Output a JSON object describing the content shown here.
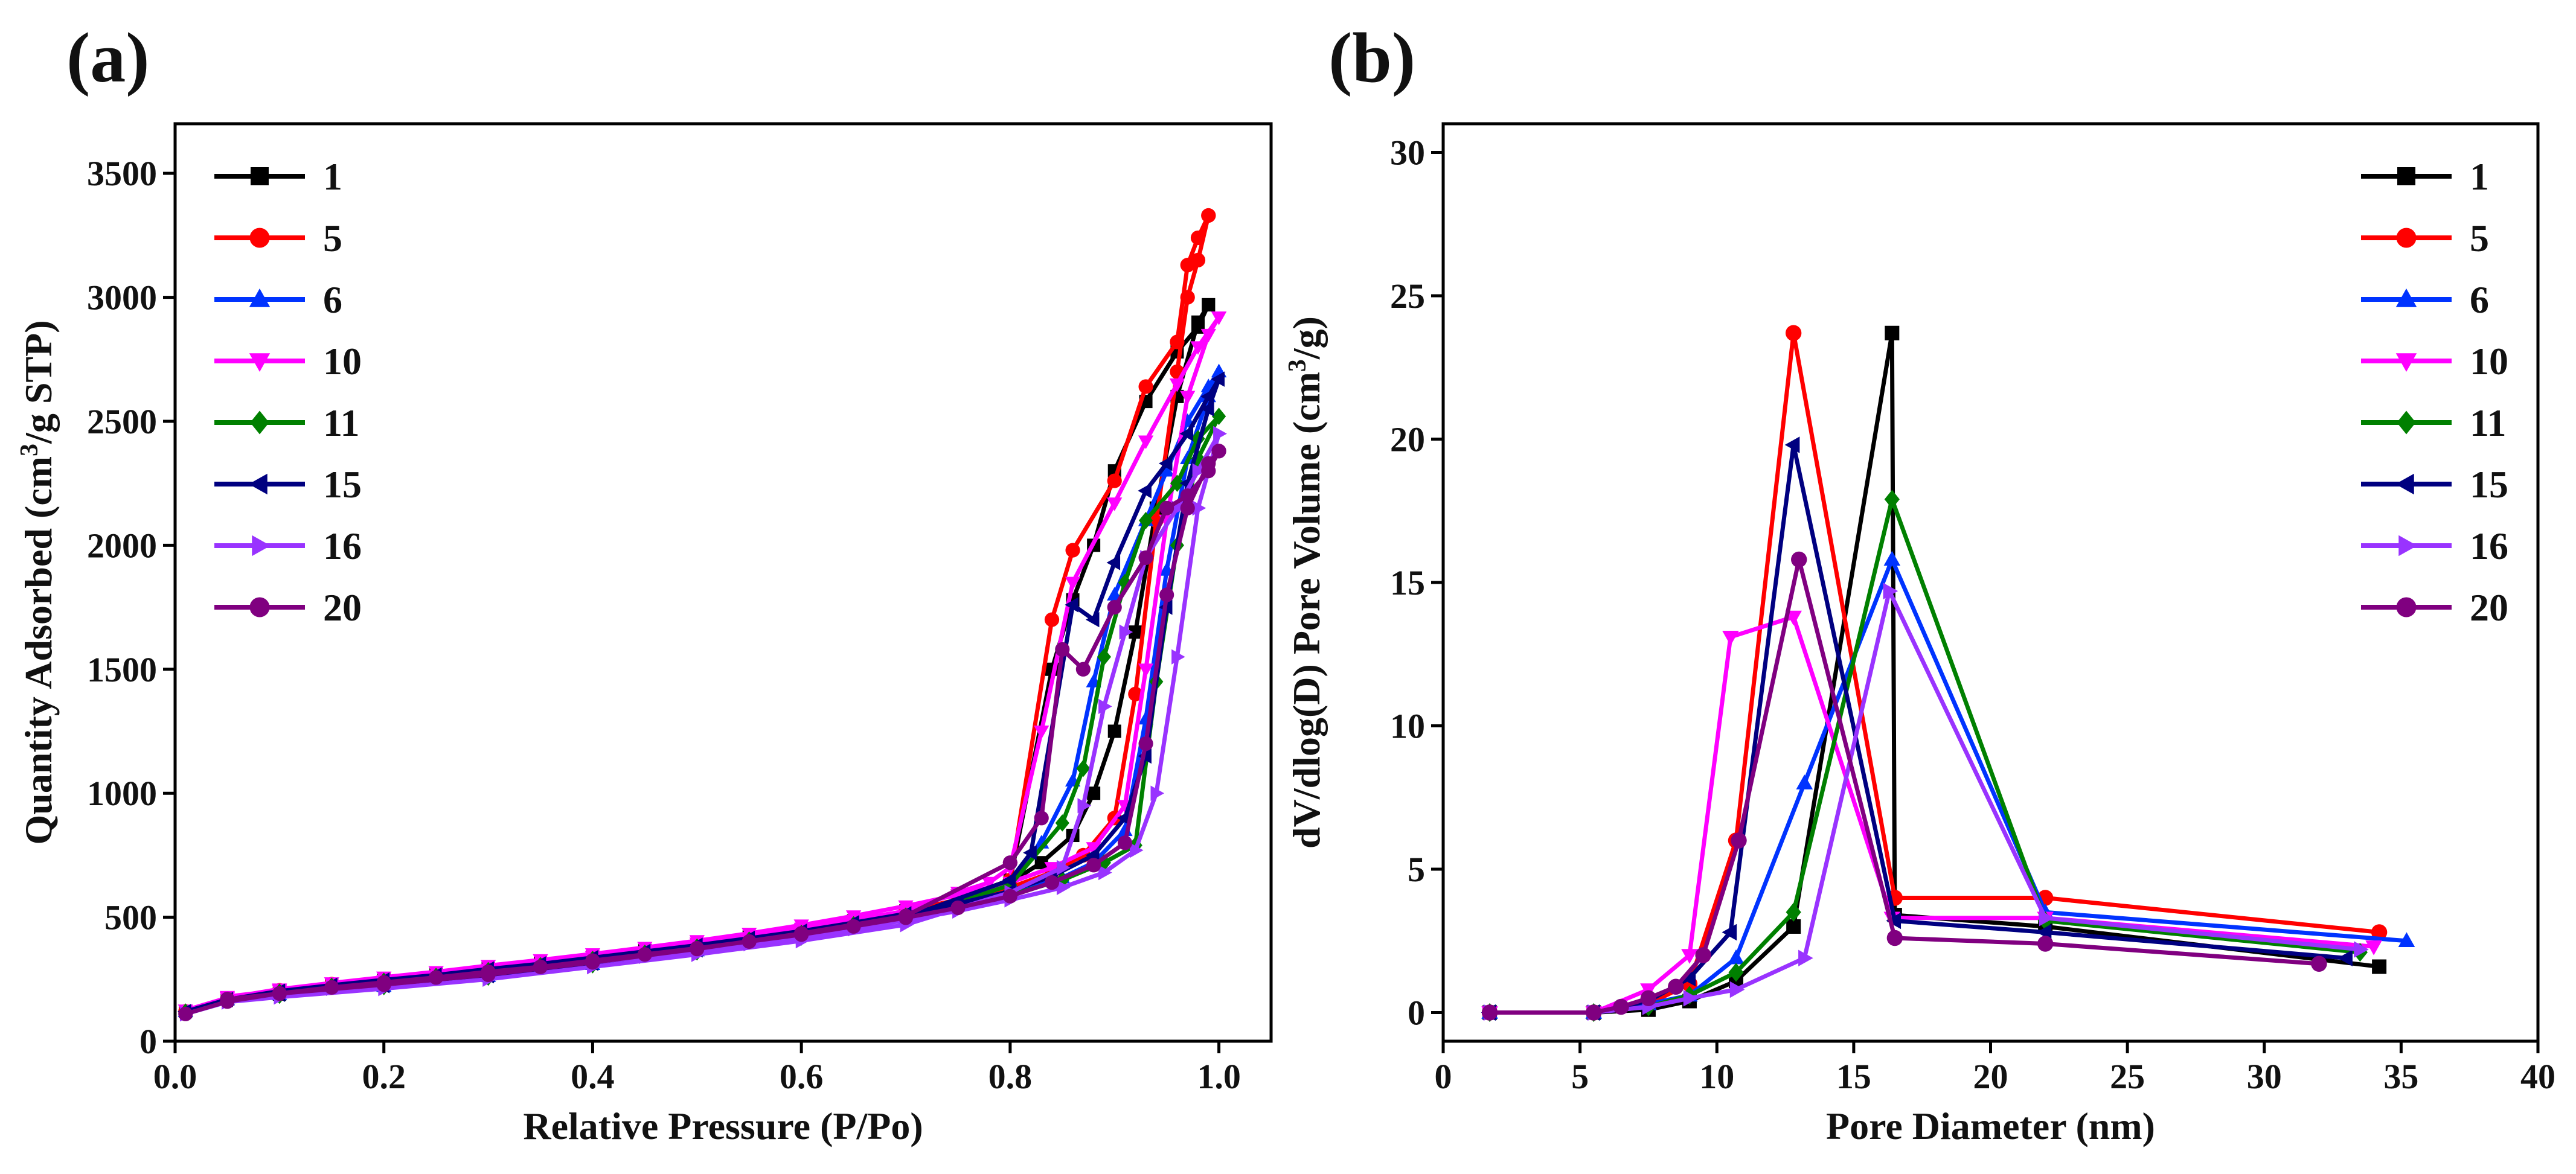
{
  "figure": {
    "panel_labels": [
      "(a)",
      "(b)"
    ]
  },
  "chart_data": [
    {
      "id": "a",
      "type": "line",
      "panel_label": "(a)",
      "title": "",
      "xlabel": "Relative Pressure (P/Po)",
      "ylabel_parts": [
        "Quantity Adsorbed (cm",
        "3",
        "/g STP)"
      ],
      "xlim": [
        0.0,
        1.05
      ],
      "ylim": [
        0,
        3700
      ],
      "xticks": [
        0.0,
        0.2,
        0.4,
        0.6,
        0.8,
        1.0
      ],
      "xtick_labels": [
        "0.0",
        "0.2",
        "0.4",
        "0.6",
        "0.8",
        "1.0"
      ],
      "yticks": [
        0,
        500,
        1000,
        1500,
        2000,
        2500,
        3000,
        3500
      ],
      "ytick_labels": [
        "0",
        "500",
        "1000",
        "1500",
        "2000",
        "2500",
        "3000",
        "3500"
      ],
      "grid": false,
      "legend_position": "top-left",
      "series": [
        {
          "name": "1",
          "color": "#000000",
          "marker": "square",
          "x": [
            0.01,
            0.05,
            0.1,
            0.15,
            0.2,
            0.25,
            0.3,
            0.35,
            0.4,
            0.45,
            0.5,
            0.55,
            0.6,
            0.65,
            0.7,
            0.75,
            0.8,
            0.83,
            0.86,
            0.88,
            0.9,
            0.92,
            0.94,
            0.96,
            0.98,
            0.99,
            0.99,
            0.98,
            0.96,
            0.93,
            0.9,
            0.88,
            0.86,
            0.84,
            0.8,
            0.7,
            0.6,
            0.5,
            0.4,
            0.3,
            0.2,
            0.1,
            0.05
          ],
          "y": [
            120,
            170,
            205,
            230,
            250,
            270,
            295,
            315,
            340,
            365,
            390,
            420,
            450,
            485,
            525,
            570,
            640,
            720,
            830,
            1000,
            1250,
            1650,
            2150,
            2600,
            2900,
            2970,
            2970,
            2880,
            2780,
            2580,
            2300,
            2000,
            1780,
            1500,
            650,
            500,
            430,
            370,
            315,
            265,
            225,
            190,
            170
          ]
        },
        {
          "name": "5",
          "color": "#ff0000",
          "marker": "circle",
          "x": [
            0.01,
            0.05,
            0.1,
            0.15,
            0.2,
            0.25,
            0.3,
            0.35,
            0.4,
            0.45,
            0.5,
            0.55,
            0.6,
            0.65,
            0.7,
            0.75,
            0.8,
            0.84,
            0.87,
            0.9,
            0.92,
            0.94,
            0.96,
            0.97,
            0.98,
            0.99,
            0.99,
            0.98,
            0.97,
            0.96,
            0.93,
            0.9,
            0.86,
            0.84,
            0.8,
            0.7,
            0.6,
            0.5,
            0.4,
            0.3,
            0.2,
            0.1,
            0.05
          ],
          "y": [
            120,
            170,
            205,
            230,
            250,
            270,
            295,
            315,
            340,
            365,
            390,
            420,
            450,
            485,
            525,
            570,
            620,
            680,
            750,
            900,
            1400,
            2100,
            2700,
            3000,
            3150,
            3330,
            3330,
            3240,
            3130,
            2820,
            2640,
            2260,
            1980,
            1700,
            650,
            500,
            430,
            370,
            315,
            265,
            225,
            190,
            170
          ]
        },
        {
          "name": "6",
          "color": "#0033ff",
          "marker": "triangle-up",
          "x": [
            0.01,
            0.05,
            0.1,
            0.15,
            0.2,
            0.25,
            0.3,
            0.35,
            0.4,
            0.45,
            0.5,
            0.55,
            0.6,
            0.65,
            0.7,
            0.75,
            0.8,
            0.85,
            0.88,
            0.91,
            0.93,
            0.95,
            0.97,
            0.99,
            1.0,
            1.0,
            0.99,
            0.97,
            0.95,
            0.93,
            0.9,
            0.88,
            0.86,
            0.83,
            0.8,
            0.7,
            0.6,
            0.5,
            0.4,
            0.3,
            0.2,
            0.1,
            0.05
          ],
          "y": [
            120,
            168,
            200,
            225,
            245,
            265,
            290,
            310,
            335,
            360,
            385,
            412,
            440,
            475,
            510,
            550,
            600,
            660,
            720,
            850,
            1300,
            1900,
            2350,
            2600,
            2700,
            2700,
            2640,
            2500,
            2300,
            2100,
            1800,
            1450,
            1050,
            800,
            640,
            495,
            425,
            365,
            310,
            262,
            222,
            188,
            168
          ]
        },
        {
          "name": "10",
          "color": "#ff00ff",
          "marker": "triangle-down",
          "x": [
            0.01,
            0.05,
            0.1,
            0.15,
            0.2,
            0.25,
            0.3,
            0.35,
            0.4,
            0.45,
            0.5,
            0.55,
            0.6,
            0.65,
            0.7,
            0.75,
            0.8,
            0.84,
            0.88,
            0.91,
            0.93,
            0.95,
            0.97,
            0.99,
            1.0,
            1.0,
            0.98,
            0.96,
            0.93,
            0.9,
            0.86,
            0.83,
            0.8,
            0.78,
            0.75,
            0.7,
            0.6,
            0.5,
            0.4,
            0.3,
            0.2,
            0.1,
            0.05
          ],
          "y": [
            125,
            175,
            210,
            235,
            258,
            280,
            305,
            328,
            352,
            378,
            405,
            435,
            468,
            505,
            545,
            590,
            640,
            700,
            780,
            950,
            1500,
            2100,
            2600,
            2850,
            2920,
            2920,
            2800,
            2650,
            2420,
            2170,
            1850,
            1250,
            700,
            640,
            600,
            525,
            455,
            395,
            340,
            290,
            245,
            205,
            180
          ]
        },
        {
          "name": "11",
          "color": "#008000",
          "marker": "diamond",
          "x": [
            0.01,
            0.05,
            0.1,
            0.15,
            0.2,
            0.25,
            0.3,
            0.35,
            0.4,
            0.45,
            0.5,
            0.55,
            0.6,
            0.65,
            0.7,
            0.75,
            0.8,
            0.85,
            0.89,
            0.92,
            0.94,
            0.96,
            0.98,
            1.0,
            1.0,
            0.98,
            0.96,
            0.93,
            0.91,
            0.89,
            0.87,
            0.85,
            0.8,
            0.7,
            0.6,
            0.5,
            0.4,
            0.3,
            0.2,
            0.1,
            0.05
          ],
          "y": [
            118,
            165,
            198,
            222,
            242,
            262,
            285,
            305,
            330,
            355,
            380,
            408,
            435,
            470,
            505,
            545,
            590,
            650,
            720,
            790,
            1450,
            2000,
            2350,
            2520,
            2520,
            2430,
            2250,
            2100,
            1850,
            1550,
            1100,
            880,
            630,
            490,
            420,
            360,
            308,
            258,
            220,
            185,
            165
          ]
        },
        {
          "name": "15",
          "color": "#000080",
          "marker": "triangle-left",
          "x": [
            0.01,
            0.05,
            0.1,
            0.15,
            0.2,
            0.25,
            0.3,
            0.35,
            0.4,
            0.45,
            0.5,
            0.55,
            0.6,
            0.65,
            0.7,
            0.75,
            0.8,
            0.84,
            0.88,
            0.91,
            0.93,
            0.95,
            0.97,
            0.99,
            1.0,
            1.0,
            0.99,
            0.97,
            0.95,
            0.93,
            0.9,
            0.88,
            0.86,
            0.82,
            0.8,
            0.7,
            0.6,
            0.5,
            0.4,
            0.3,
            0.2,
            0.1,
            0.05
          ],
          "y": [
            120,
            168,
            202,
            226,
            247,
            267,
            291,
            312,
            337,
            362,
            387,
            415,
            444,
            478,
            514,
            555,
            605,
            665,
            750,
            900,
            1150,
            1750,
            2250,
            2550,
            2670,
            2670,
            2600,
            2450,
            2330,
            2220,
            1930,
            1700,
            1760,
            760,
            650,
            500,
            430,
            368,
            314,
            264,
            224,
            189,
            168
          ]
        },
        {
          "name": "16",
          "color": "#9933ff",
          "marker": "triangle-right",
          "x": [
            0.01,
            0.05,
            0.1,
            0.15,
            0.2,
            0.25,
            0.3,
            0.35,
            0.4,
            0.45,
            0.5,
            0.55,
            0.6,
            0.65,
            0.7,
            0.75,
            0.8,
            0.85,
            0.89,
            0.92,
            0.94,
            0.96,
            0.98,
            1.0,
            1.0,
            0.98,
            0.96,
            0.93,
            0.91,
            0.89,
            0.87,
            0.85,
            0.8,
            0.7,
            0.6,
            0.5,
            0.4,
            0.3,
            0.2,
            0.1,
            0.05
          ],
          "y": [
            110,
            158,
            190,
            213,
            232,
            252,
            275,
            295,
            318,
            342,
            367,
            393,
            420,
            453,
            488,
            525,
            570,
            620,
            680,
            770,
            1000,
            1550,
            2150,
            2450,
            2450,
            2300,
            2150,
            1950,
            1650,
            1350,
            950,
            700,
            600,
            470,
            405,
            350,
            300,
            250,
            212,
            178,
            158
          ]
        },
        {
          "name": "20",
          "color": "#800080",
          "marker": "circle",
          "x": [
            0.01,
            0.05,
            0.1,
            0.15,
            0.2,
            0.25,
            0.3,
            0.35,
            0.4,
            0.45,
            0.5,
            0.55,
            0.6,
            0.65,
            0.7,
            0.75,
            0.8,
            0.84,
            0.88,
            0.91,
            0.93,
            0.95,
            0.97,
            0.99,
            1.0,
            1.0,
            0.99,
            0.97,
            0.95,
            0.93,
            0.9,
            0.87,
            0.85,
            0.83,
            0.8,
            0.7,
            0.6,
            0.5,
            0.4,
            0.3,
            0.2,
            0.1,
            0.05
          ],
          "y": [
            110,
            160,
            193,
            217,
            237,
            257,
            280,
            300,
            325,
            350,
            375,
            402,
            430,
            463,
            498,
            538,
            585,
            640,
            710,
            800,
            1200,
            1800,
            2150,
            2330,
            2380,
            2380,
            2300,
            2200,
            2150,
            1950,
            1750,
            1500,
            1580,
            900,
            720,
            505,
            435,
            372,
            318,
            268,
            228,
            192,
            170
          ]
        }
      ]
    },
    {
      "id": "b",
      "type": "line",
      "panel_label": "(b)",
      "title": "",
      "xlabel": "Pore Diameter (nm)",
      "ylabel_parts": [
        "dV/dlog(D) Pore Volume (cm",
        "3",
        "/g)"
      ],
      "xlim": [
        0,
        40
      ],
      "ylim": [
        -1,
        31
      ],
      "xticks": [
        0,
        5,
        10,
        15,
        20,
        25,
        30,
        35,
        40
      ],
      "xtick_labels": [
        "0",
        "5",
        "10",
        "15",
        "20",
        "25",
        "30",
        "35",
        "40"
      ],
      "yticks": [
        0,
        5,
        10,
        15,
        20,
        25,
        30
      ],
      "ytick_labels": [
        "0",
        "5",
        "10",
        "15",
        "20",
        "25",
        "30"
      ],
      "grid": false,
      "legend_position": "top-right",
      "series": [
        {
          "name": "1",
          "color": "#000000",
          "marker": "square",
          "x": [
            1.7,
            5.5,
            7.5,
            9.0,
            10.7,
            12.8,
            16.4,
            16.5,
            22.0,
            34.2
          ],
          "y": [
            0.0,
            0.0,
            0.1,
            0.4,
            1.1,
            3.0,
            23.7,
            3.4,
            3.0,
            1.6
          ]
        },
        {
          "name": "5",
          "color": "#ff0000",
          "marker": "circle",
          "x": [
            1.7,
            5.5,
            7.5,
            9.0,
            10.7,
            12.8,
            16.5,
            22.0,
            34.2
          ],
          "y": [
            0.0,
            0.0,
            0.3,
            1.0,
            6.0,
            23.7,
            4.0,
            4.0,
            2.8
          ]
        },
        {
          "name": "6",
          "color": "#0033ff",
          "marker": "triangle-up",
          "x": [
            1.7,
            5.5,
            7.5,
            9.0,
            10.7,
            13.2,
            16.4,
            22.0,
            35.2
          ],
          "y": [
            0.0,
            0.0,
            0.3,
            0.6,
            1.9,
            8.0,
            15.8,
            3.5,
            2.5
          ]
        },
        {
          "name": "10",
          "color": "#ff00ff",
          "marker": "triangle-down",
          "x": [
            1.7,
            5.5,
            7.5,
            9.0,
            10.5,
            12.8,
            16.4,
            22.0,
            34.0
          ],
          "y": [
            0.0,
            0.0,
            0.8,
            2.0,
            13.1,
            13.8,
            3.3,
            3.3,
            2.3
          ]
        },
        {
          "name": "11",
          "color": "#008000",
          "marker": "diamond",
          "x": [
            1.7,
            5.5,
            7.5,
            9.0,
            10.7,
            12.8,
            16.4,
            22.0,
            33.5
          ],
          "y": [
            0.0,
            0.0,
            0.2,
            0.6,
            1.4,
            3.5,
            17.9,
            3.2,
            2.1
          ]
        },
        {
          "name": "15",
          "color": "#000080",
          "marker": "triangle-left",
          "x": [
            1.7,
            5.5,
            7.5,
            9.0,
            10.5,
            12.8,
            16.5,
            22.0,
            33.0
          ],
          "y": [
            0.0,
            0.0,
            0.4,
            1.2,
            2.8,
            19.8,
            3.2,
            2.8,
            1.9
          ]
        },
        {
          "name": "16",
          "color": "#9933ff",
          "marker": "triangle-right",
          "x": [
            1.7,
            5.5,
            7.5,
            9.0,
            10.7,
            13.2,
            16.3,
            22.0,
            33.5
          ],
          "y": [
            0.0,
            0.0,
            0.2,
            0.5,
            0.8,
            1.9,
            14.7,
            3.3,
            2.2
          ]
        },
        {
          "name": "20",
          "color": "#800080",
          "marker": "circle",
          "x": [
            1.7,
            5.5,
            6.5,
            7.5,
            8.5,
            9.5,
            10.8,
            13.0,
            16.5,
            22.0,
            32.0
          ],
          "y": [
            0.0,
            0.0,
            0.2,
            0.5,
            0.9,
            2.0,
            6.0,
            15.8,
            2.6,
            2.4,
            1.7
          ]
        }
      ]
    }
  ]
}
